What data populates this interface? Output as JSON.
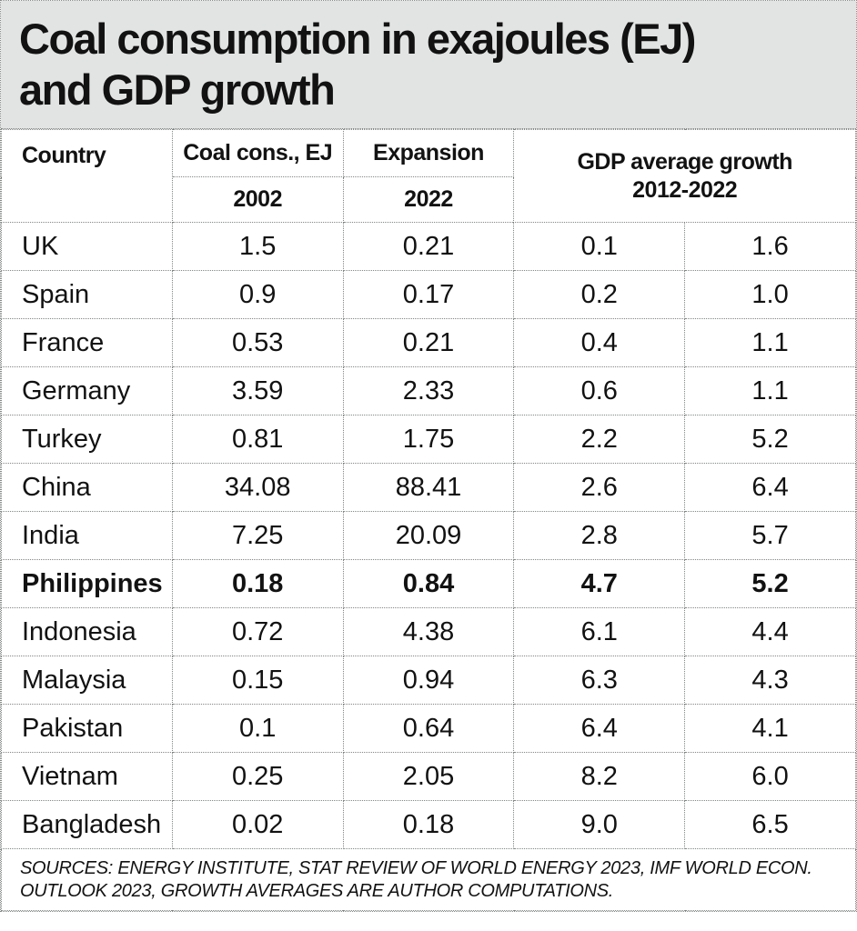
{
  "title": {
    "line1": "Coal consumption in exajoules (EJ)",
    "line2": "and GDP growth"
  },
  "table": {
    "headers": {
      "country": "Country",
      "coal": "Coal cons., EJ",
      "expansion": "Expansion",
      "gdp": "GDP average growth",
      "gdp_period": "2012-2022",
      "year_2002": "2002",
      "year_2022": "2022"
    },
    "rows": [
      {
        "country": "UK",
        "coal_2002": "1.5",
        "coal_2022": "0.21",
        "gdp_a": "0.1",
        "gdp_b": "1.6",
        "bold": false
      },
      {
        "country": "Spain",
        "coal_2002": "0.9",
        "coal_2022": "0.17",
        "gdp_a": "0.2",
        "gdp_b": "1.0",
        "bold": false
      },
      {
        "country": "France",
        "coal_2002": "0.53",
        "coal_2022": "0.21",
        "gdp_a": "0.4",
        "gdp_b": "1.1",
        "bold": false
      },
      {
        "country": "Germany",
        "coal_2002": "3.59",
        "coal_2022": "2.33",
        "gdp_a": "0.6",
        "gdp_b": "1.1",
        "bold": false
      },
      {
        "country": "Turkey",
        "coal_2002": "0.81",
        "coal_2022": "1.75",
        "gdp_a": "2.2",
        "gdp_b": "5.2",
        "bold": false
      },
      {
        "country": "China",
        "coal_2002": "34.08",
        "coal_2022": "88.41",
        "gdp_a": "2.6",
        "gdp_b": "6.4",
        "bold": false
      },
      {
        "country": "India",
        "coal_2002": "7.25",
        "coal_2022": "20.09",
        "gdp_a": "2.8",
        "gdp_b": "5.7",
        "bold": false
      },
      {
        "country": "Philippines",
        "coal_2002": "0.18",
        "coal_2022": "0.84",
        "gdp_a": "4.7",
        "gdp_b": "5.2",
        "bold": true
      },
      {
        "country": "Indonesia",
        "coal_2002": "0.72",
        "coal_2022": "4.38",
        "gdp_a": "6.1",
        "gdp_b": "4.4",
        "bold": false
      },
      {
        "country": "Malaysia",
        "coal_2002": "0.15",
        "coal_2022": "0.94",
        "gdp_a": "6.3",
        "gdp_b": "4.3",
        "bold": false
      },
      {
        "country": "Pakistan",
        "coal_2002": "0.1",
        "coal_2022": "0.64",
        "gdp_a": "6.4",
        "gdp_b": "4.1",
        "bold": false
      },
      {
        "country": "Vietnam",
        "coal_2002": "0.25",
        "coal_2022": "2.05",
        "gdp_a": "8.2",
        "gdp_b": "6.0",
        "bold": false
      },
      {
        "country": "Bangladesh",
        "coal_2002": "0.02",
        "coal_2022": "0.18",
        "gdp_a": "9.0",
        "gdp_b": "6.5",
        "bold": false
      }
    ]
  },
  "footer": {
    "sources": "SOURCES: ENERGY INSTITUTE, STAT REVIEW OF WORLD ENERGY 2023, IMF WORLD ECON. OUTLOOK 2023, GROWTH AVERAGES ARE AUTHOR COMPUTATIONS."
  },
  "colors": {
    "title_bg": "#e2e4e3",
    "border": "#818683",
    "text": "#121212"
  },
  "chart_data": {
    "type": "table",
    "title": "Coal consumption in exajoules (EJ) and GDP growth",
    "columns": [
      "Country",
      "Coal cons., EJ 2002",
      "Expansion 2022",
      "GDP average growth 2012-2022",
      "GDP average growth 2012-2022 (2nd)"
    ],
    "rows": [
      [
        "UK",
        1.5,
        0.21,
        0.1,
        1.6
      ],
      [
        "Spain",
        0.9,
        0.17,
        0.2,
        1.0
      ],
      [
        "France",
        0.53,
        0.21,
        0.4,
        1.1
      ],
      [
        "Germany",
        3.59,
        2.33,
        0.6,
        1.1
      ],
      [
        "Turkey",
        0.81,
        1.75,
        2.2,
        5.2
      ],
      [
        "China",
        34.08,
        88.41,
        2.6,
        6.4
      ],
      [
        "India",
        7.25,
        20.09,
        2.8,
        5.7
      ],
      [
        "Philippines",
        0.18,
        0.84,
        4.7,
        5.2
      ],
      [
        "Indonesia",
        0.72,
        4.38,
        6.1,
        4.4
      ],
      [
        "Malaysia",
        0.15,
        0.94,
        6.3,
        4.3
      ],
      [
        "Pakistan",
        0.1,
        0.64,
        6.4,
        4.1
      ],
      [
        "Vietnam",
        0.25,
        2.05,
        8.2,
        6.0
      ],
      [
        "Bangladesh",
        0.02,
        0.18,
        9.0,
        6.5
      ]
    ],
    "highlighted_row": "Philippines",
    "source_note": "SOURCES: ENERGY INSTITUTE, STAT REVIEW OF WORLD ENERGY 2023, IMF WORLD ECON. OUTLOOK 2023, GROWTH AVERAGES ARE AUTHOR COMPUTATIONS."
  }
}
